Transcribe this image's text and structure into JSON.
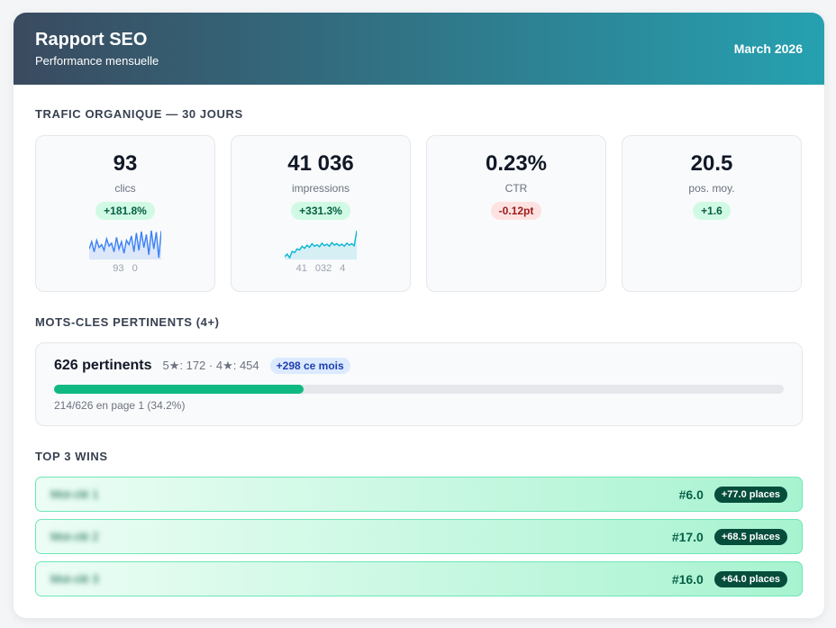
{
  "header": {
    "title": "Rapport SEO",
    "subtitle": "Performance mensuelle",
    "date": "March 2026"
  },
  "traffic": {
    "title": "TRAFIC ORGANIQUE — 30 JOURS",
    "metrics": [
      {
        "value": "93",
        "label": "clics",
        "delta": "+181.8%",
        "trend": "up",
        "spark": [
          30,
          55,
          20,
          60,
          35,
          45,
          25,
          65,
          40,
          50,
          20,
          70,
          30,
          55,
          15,
          60,
          45,
          75,
          20,
          85,
          25,
          90,
          35,
          80,
          10,
          93,
          30,
          88,
          0,
          92
        ],
        "spark_labels": [
          "93",
          "0"
        ],
        "color": "#3b82f6"
      },
      {
        "value": "41 036",
        "label": "impressions",
        "delta": "+331.3%",
        "trend": "up",
        "spark": [
          20,
          25,
          18,
          30,
          28,
          35,
          33,
          40,
          36,
          42,
          38,
          45,
          40,
          43,
          39,
          46,
          41,
          44,
          40,
          47,
          42,
          45,
          41,
          44,
          40,
          46,
          42,
          45,
          41,
          70
        ],
        "spark_labels": [
          "41 032",
          "4"
        ],
        "color": "#06b6d4"
      },
      {
        "value": "0.23%",
        "label": "CTR",
        "delta": "-0.12pt",
        "trend": "down"
      },
      {
        "value": "20.5",
        "label": "pos. moy.",
        "delta": "+1.6",
        "trend": "up"
      }
    ]
  },
  "keywords": {
    "title": "MOTS-CLES PERTINENTS (4+)",
    "count": "626 pertinents",
    "stars": "5★: 172 · 4★: 454",
    "badge": "+298 ce mois",
    "progress": 34.2,
    "progress_label": "214/626 en page 1 (34.2%)"
  },
  "wins": {
    "title": "TOP 3 WINS",
    "rows": [
      {
        "keyword": "Mot-clé 1",
        "position": "#6.0",
        "gain": "+77.0 places"
      },
      {
        "keyword": "Mot-clé 2",
        "position": "#17.0",
        "gain": "+68.5 places"
      },
      {
        "keyword": "Mot-clé 3",
        "position": "#16.0",
        "gain": "+64.0 places"
      }
    ]
  }
}
